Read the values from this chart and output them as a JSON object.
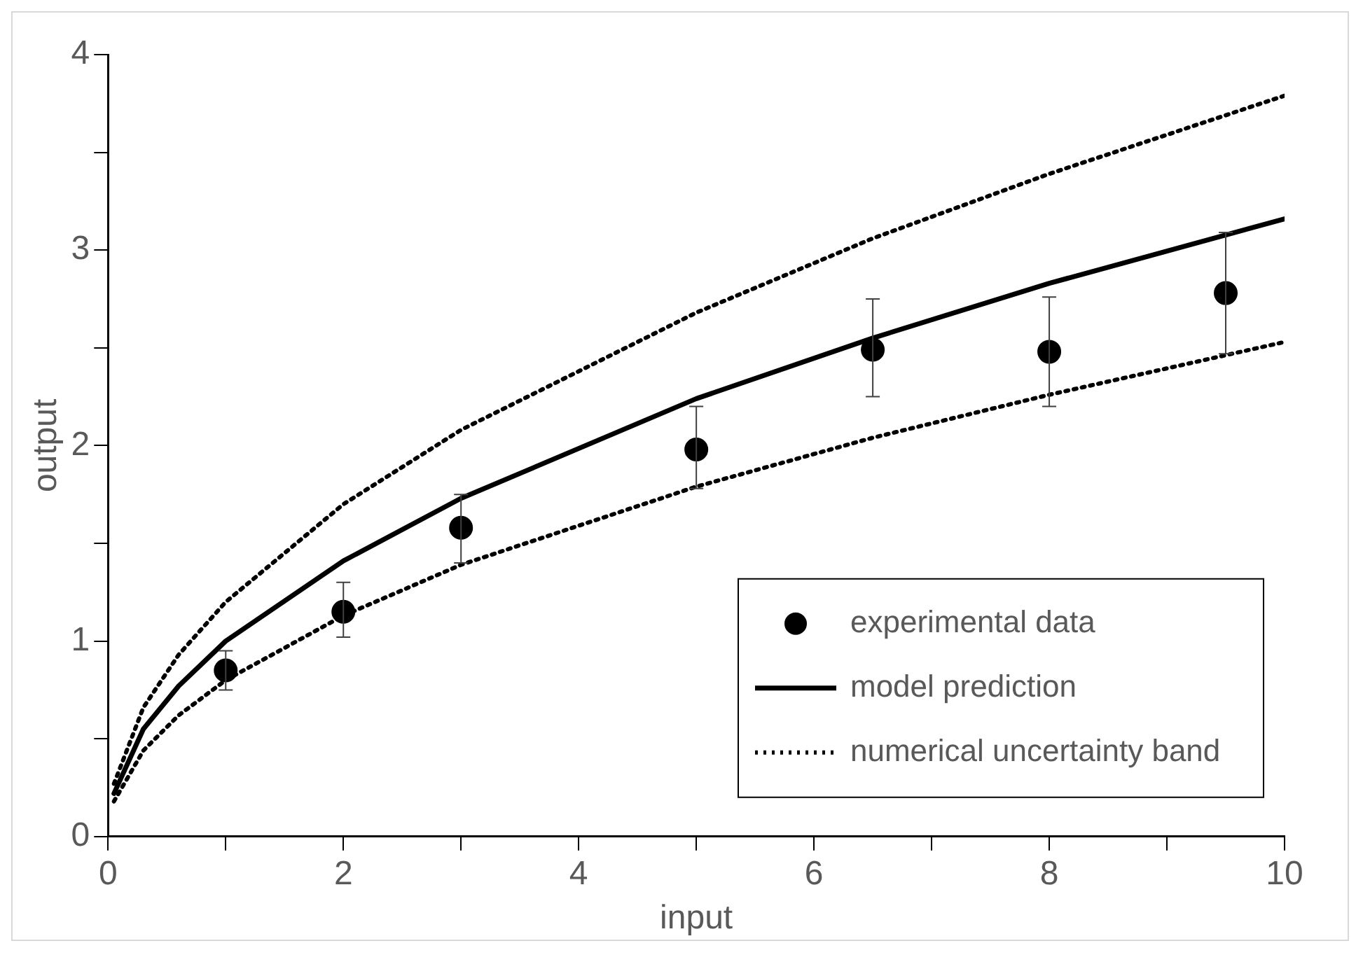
{
  "chart_data": {
    "type": "line",
    "xlabel": "input",
    "ylabel": "output",
    "xlim": [
      0,
      10
    ],
    "ylim": [
      0,
      4
    ],
    "xticks": [
      0,
      {
        "value": 1,
        "label": null
      },
      2,
      {
        "value": 3,
        "label": null
      },
      4,
      {
        "value": 5,
        "label": null
      },
      6,
      {
        "value": 7,
        "label": null
      },
      8,
      {
        "value": 9,
        "label": null
      },
      10
    ],
    "yticks": [
      0,
      {
        "value": 0.5,
        "label": null
      },
      1,
      {
        "value": 1.5,
        "label": null
      },
      2,
      {
        "value": 2.5,
        "label": null
      },
      3,
      {
        "value": 3.5,
        "label": null
      },
      4
    ],
    "legend": "bottom right",
    "series": [
      {
        "name": "experimental data",
        "type": "scatter",
        "marker": "circle",
        "color": "#000000",
        "x": [
          1,
          2,
          3,
          5,
          6.5,
          8,
          9.5
        ],
        "values": [
          0.85,
          1.15,
          1.58,
          1.98,
          2.49,
          2.48,
          2.78
        ],
        "errors": [
          [
            0.75,
            0.95
          ],
          [
            1.02,
            1.3
          ],
          [
            1.4,
            1.75
          ],
          [
            1.78,
            2.2
          ],
          [
            2.25,
            2.75
          ],
          [
            2.2,
            2.76
          ],
          [
            2.47,
            3.09
          ]
        ]
      },
      {
        "name": "model prediction",
        "line_style": "solid",
        "color": "#000000",
        "x": [
          0.05,
          0.3,
          0.6,
          1,
          2,
          3,
          5,
          6.5,
          8,
          10
        ],
        "values": [
          0.22,
          0.55,
          0.77,
          1.0,
          1.41,
          1.73,
          2.24,
          2.55,
          2.83,
          3.16
        ]
      },
      {
        "name": "numerical uncertainty band",
        "line_style": "dotted",
        "color": "#000000",
        "x": [
          0.05,
          0.3,
          0.6,
          1,
          2,
          3,
          5,
          6.5,
          8,
          10
        ],
        "values": [
          0.18,
          0.44,
          0.62,
          0.8,
          1.13,
          1.39,
          1.79,
          2.04,
          2.26,
          2.53
        ]
      },
      {
        "line_style": "dotted",
        "color": "#000000",
        "x": [
          0.05,
          0.3,
          0.6,
          1,
          2,
          3,
          5,
          6.5,
          8,
          10
        ],
        "values": [
          0.27,
          0.66,
          0.93,
          1.2,
          1.7,
          2.08,
          2.68,
          3.06,
          3.39,
          3.79
        ]
      }
    ]
  }
}
